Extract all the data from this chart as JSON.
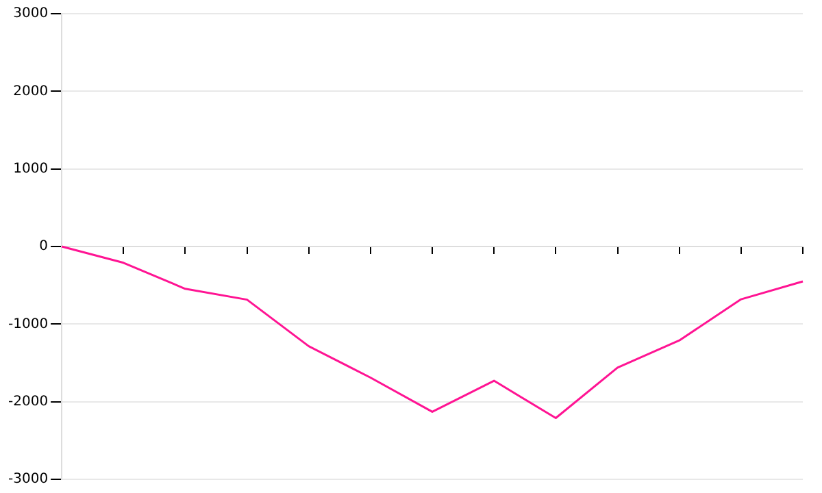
{
  "chart_data": {
    "type": "line",
    "categories": [
      null,
      null,
      null,
      null,
      null,
      null,
      null,
      null,
      null,
      null,
      null,
      null,
      null
    ],
    "series": [
      {
        "color": "#ff1493",
        "values": [
          0,
          -210,
          -545,
          -685,
          -1285,
          -1690,
          -2130,
          -1730,
          -2210,
          -1560,
          -1210,
          -680,
          -450
        ]
      }
    ],
    "ylim": [
      -3000,
      3000
    ],
    "yticks": [
      -3000,
      -2000,
      -1000,
      0,
      1000,
      2000,
      3000
    ],
    "grid": "y",
    "legend": false,
    "marker": "none",
    "line_style": "solid"
  }
}
